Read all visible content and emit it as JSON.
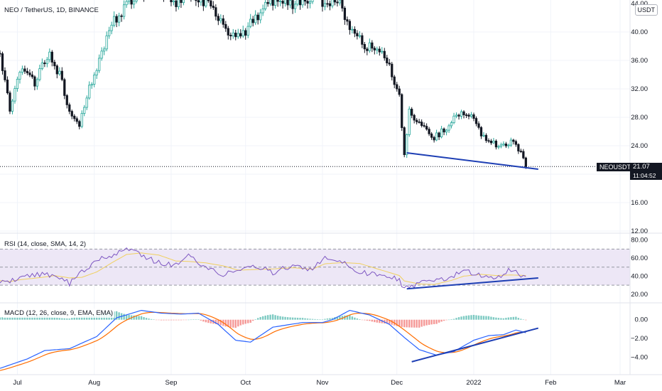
{
  "header": {
    "symbol_title": "NEO / TetherUS, 1D, BINANCE",
    "currency_button": "USDT"
  },
  "price_scale": {
    "ticks": [
      "40.00",
      "36.00",
      "32.00",
      "28.00",
      "24.00",
      "16.00",
      "12.00"
    ],
    "top_partial": "44.00",
    "last_symbol": "NEOUSDT",
    "last_price": "21.07",
    "countdown": "11:04:52"
  },
  "indicators": {
    "rsi_label": "RSI (14, close, SMA, 14, 2)",
    "rsi_ticks": [
      "80.00",
      "60.00",
      "40.00",
      "20.00"
    ],
    "macd_label": "MACD (12, 26, close, 9, EMA, EMA)",
    "macd_ticks": [
      "0.00",
      "−2.00",
      "−4.00"
    ]
  },
  "time_axis": {
    "labels": [
      "Jul",
      "Aug",
      "Sep",
      "Oct",
      "Nov",
      "Dec",
      "2022",
      "Feb",
      "Mar"
    ]
  },
  "colors": {
    "up": "#26a69a",
    "down": "#131722",
    "rsi_line": "#7e57c2",
    "rsi_ma": "#f0d060",
    "rsi_band": "#ede7f6",
    "macd_line": "#2962ff",
    "signal_line": "#ff6d00",
    "hist_up": "#26a69a",
    "hist_down": "#ef5350",
    "trendline": "#1e3fb4"
  },
  "chart_data": {
    "type": "candlestick",
    "title": "NEO / TetherUS, 1D, BINANCE",
    "x_range": [
      "2021-06-24",
      "2022-03-05"
    ],
    "price_ylim": [
      12,
      44
    ],
    "last_price": 21.07,
    "price_keypoints": [
      [
        "2021-06-24",
        37
      ],
      [
        "2021-06-28",
        29
      ],
      [
        "2021-07-02",
        35
      ],
      [
        "2021-07-08",
        33
      ],
      [
        "2021-07-14",
        37
      ],
      [
        "2021-07-18",
        34
      ],
      [
        "2021-07-22",
        29
      ],
      [
        "2021-07-26",
        27
      ],
      [
        "2021-07-30",
        32
      ],
      [
        "2021-08-04",
        37
      ],
      [
        "2021-08-08",
        41
      ],
      [
        "2021-08-14",
        44
      ],
      [
        "2021-08-20",
        45
      ],
      [
        "2021-08-26",
        46
      ],
      [
        "2021-09-03",
        44
      ],
      [
        "2021-09-08",
        46
      ],
      [
        "2021-09-15",
        44
      ],
      [
        "2021-09-20",
        42
      ],
      [
        "2021-09-24",
        40
      ],
      [
        "2021-09-29",
        39
      ],
      [
        "2021-10-03",
        41
      ],
      [
        "2021-10-08",
        43
      ],
      [
        "2021-10-14",
        45
      ],
      [
        "2021-10-20",
        44
      ],
      [
        "2021-10-28",
        45
      ],
      [
        "2021-11-02",
        44
      ],
      [
        "2021-11-08",
        44
      ],
      [
        "2021-11-12",
        41
      ],
      [
        "2021-11-18",
        38
      ],
      [
        "2021-11-23",
        38
      ],
      [
        "2021-11-28",
        35
      ],
      [
        "2021-12-02",
        31
      ],
      [
        "2021-12-04",
        23
      ],
      [
        "2021-12-06",
        29
      ],
      [
        "2021-12-10",
        27
      ],
      [
        "2021-12-16",
        25
      ],
      [
        "2021-12-22",
        27
      ],
      [
        "2021-12-27",
        29
      ],
      [
        "2022-01-01",
        28
      ],
      [
        "2022-01-05",
        25
      ],
      [
        "2022-01-10",
        24
      ],
      [
        "2022-01-14",
        24
      ],
      [
        "2022-01-17",
        25
      ],
      [
        "2022-01-20",
        23
      ],
      [
        "2022-01-22",
        21.07
      ]
    ],
    "rsi_ylim": [
      12,
      86
    ],
    "rsi_band": [
      30,
      70
    ],
    "rsi_keypoints": [
      [
        "2021-06-24",
        35
      ],
      [
        "2021-06-28",
        33
      ],
      [
        "2021-07-02",
        40
      ],
      [
        "2021-07-10",
        42
      ],
      [
        "2021-07-16",
        40
      ],
      [
        "2021-07-22",
        32
      ],
      [
        "2021-07-27",
        44
      ],
      [
        "2021-08-02",
        58
      ],
      [
        "2021-08-08",
        62
      ],
      [
        "2021-08-14",
        72
      ],
      [
        "2021-08-20",
        63
      ],
      [
        "2021-08-27",
        55
      ],
      [
        "2021-09-03",
        52
      ],
      [
        "2021-09-08",
        62
      ],
      [
        "2021-09-15",
        50
      ],
      [
        "2021-09-22",
        42
      ],
      [
        "2021-09-28",
        48
      ],
      [
        "2021-10-05",
        52
      ],
      [
        "2021-10-12",
        44
      ],
      [
        "2021-10-20",
        52
      ],
      [
        "2021-10-28",
        47
      ],
      [
        "2021-11-02",
        62
      ],
      [
        "2021-11-09",
        56
      ],
      [
        "2021-11-16",
        44
      ],
      [
        "2021-11-24",
        42
      ],
      [
        "2021-12-02",
        36
      ],
      [
        "2021-12-04",
        26
      ],
      [
        "2021-12-10",
        32
      ],
      [
        "2021-12-16",
        34
      ],
      [
        "2021-12-23",
        40
      ],
      [
        "2021-12-28",
        46
      ],
      [
        "2022-01-04",
        40
      ],
      [
        "2022-01-10",
        36
      ],
      [
        "2022-01-16",
        48
      ],
      [
        "2022-01-22",
        38
      ]
    ],
    "macd_ylim": [
      -5.5,
      1.5
    ],
    "macd_keypoints": [
      [
        "2021-06-24",
        -5.2
      ],
      [
        "2021-07-05",
        -4.2
      ],
      [
        "2021-07-12",
        -3.3
      ],
      [
        "2021-07-22",
        -3.1
      ],
      [
        "2021-08-02",
        -1.8
      ],
      [
        "2021-08-10",
        0.2
      ],
      [
        "2021-08-20",
        1.0
      ],
      [
        "2021-08-28",
        0.7
      ],
      [
        "2021-09-05",
        0.6
      ],
      [
        "2021-09-12",
        0.7
      ],
      [
        "2021-09-20",
        -0.5
      ],
      [
        "2021-09-27",
        -2.2
      ],
      [
        "2021-10-03",
        -2.4
      ],
      [
        "2021-10-12",
        -0.8
      ],
      [
        "2021-10-24",
        -0.3
      ],
      [
        "2021-11-01",
        -0.3
      ],
      [
        "2021-11-05",
        0.0
      ],
      [
        "2021-11-12",
        1.0
      ],
      [
        "2021-11-20",
        0.5
      ],
      [
        "2021-11-28",
        -0.5
      ],
      [
        "2021-12-04",
        -1.9
      ],
      [
        "2021-12-10",
        -3.2
      ],
      [
        "2021-12-17",
        -3.8
      ],
      [
        "2021-12-24",
        -3.4
      ],
      [
        "2022-01-01",
        -2.2
      ],
      [
        "2022-01-07",
        -1.7
      ],
      [
        "2022-01-13",
        -1.6
      ],
      [
        "2022-01-18",
        -1.1
      ],
      [
        "2022-01-22",
        -1.4
      ]
    ],
    "trendlines": {
      "price": [
        [
          "2021-12-05",
          23.0
        ],
        [
          "2022-01-27",
          20.7
        ]
      ],
      "rsi": [
        [
          "2021-12-05",
          26
        ],
        [
          "2022-01-27",
          38
        ]
      ],
      "macd": [
        [
          "2021-12-07",
          -4.5
        ],
        [
          "2022-01-27",
          -0.9
        ]
      ]
    }
  }
}
